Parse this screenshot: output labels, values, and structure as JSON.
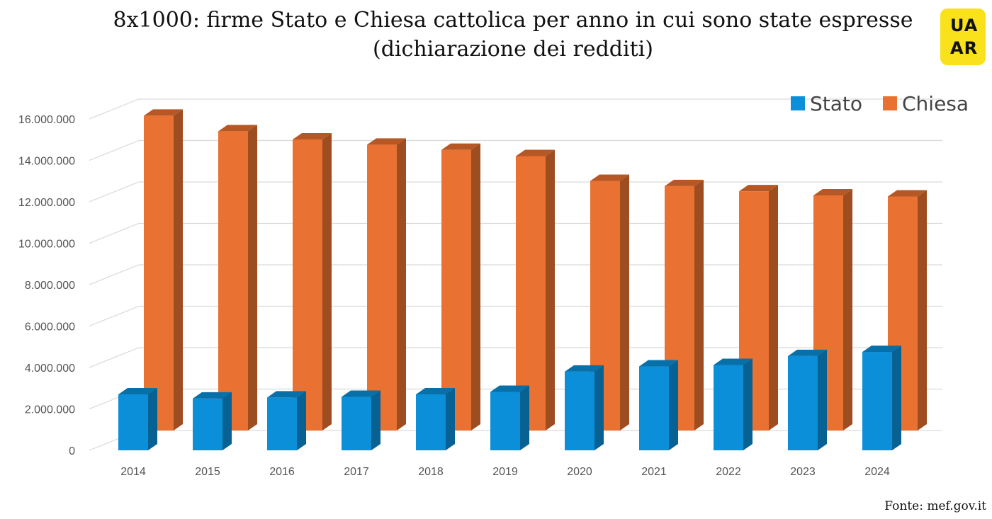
{
  "header": {
    "title_line1": "8x1000: firme Stato e Chiesa cattolica per anno in cui sono state espresse",
    "title_line2": "(dichiarazione dei redditi)"
  },
  "logo": {
    "text_top": "UA",
    "text_bottom": "AR",
    "color": "#f9e21c"
  },
  "source": "Fonte: mef.gov.it",
  "chart_data": {
    "type": "bar",
    "categories": [
      "2014",
      "2015",
      "2016",
      "2017",
      "2018",
      "2019",
      "2020",
      "2021",
      "2022",
      "2023",
      "2024"
    ],
    "series": [
      {
        "name": "Stato",
        "color": "#0a8fd8",
        "values": [
          2700000,
          2500000,
          2550000,
          2580000,
          2700000,
          2820000,
          3800000,
          4050000,
          4120000,
          4550000,
          4750000
        ]
      },
      {
        "name": "Chiesa",
        "color": "#e97131",
        "values": [
          15200000,
          14450000,
          14050000,
          13800000,
          13550000,
          13250000,
          12050000,
          11800000,
          11550000,
          11350000,
          11300000
        ]
      }
    ],
    "ylim": [
      0,
      16000000
    ],
    "yticks": [
      "0",
      "2.000.000",
      "4.000.000",
      "6.000.000",
      "8.000.000",
      "10.000.000",
      "12.000.000",
      "14.000.000",
      "16.000.000"
    ],
    "ytick_values": [
      0,
      2000000,
      4000000,
      6000000,
      8000000,
      10000000,
      12000000,
      14000000,
      16000000
    ],
    "grid": true,
    "legend_position": "top-right",
    "style": "3d-column"
  }
}
